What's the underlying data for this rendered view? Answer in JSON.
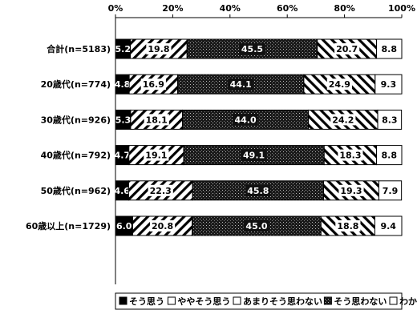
{
  "chart_data": {
    "type": "bar",
    "stacked": true,
    "orientation": "horizontal",
    "percent": true,
    "categories": [
      "合計(n=5183)",
      "20歳代(n=774)",
      "30歳代(n=926)",
      "40歳代(n=792)",
      "50歳代(n=962)",
      "60歳以上(n=1729)"
    ],
    "series": [
      {
        "name": "そう思う",
        "values": [
          5.2,
          4.8,
          5.3,
          4.7,
          4.6,
          6.0
        ]
      },
      {
        "name": "ややそう思う",
        "values": [
          19.8,
          16.9,
          18.1,
          19.1,
          22.3,
          20.8
        ]
      },
      {
        "name": "あまりそう思わない",
        "values": [
          45.5,
          44.1,
          44.0,
          49.1,
          45.8,
          45.0
        ]
      },
      {
        "name": "そう思わない",
        "values": [
          20.7,
          24.9,
          24.2,
          18.3,
          19.3,
          18.8
        ]
      },
      {
        "name": "わからない",
        "values": [
          8.8,
          9.3,
          8.3,
          8.8,
          7.9,
          9.4
        ]
      }
    ],
    "x_ticks": [
      "0%",
      "20%",
      "40%",
      "60%",
      "80%",
      "100%"
    ],
    "xlim": [
      0,
      100
    ],
    "legend_position": "bottom"
  }
}
